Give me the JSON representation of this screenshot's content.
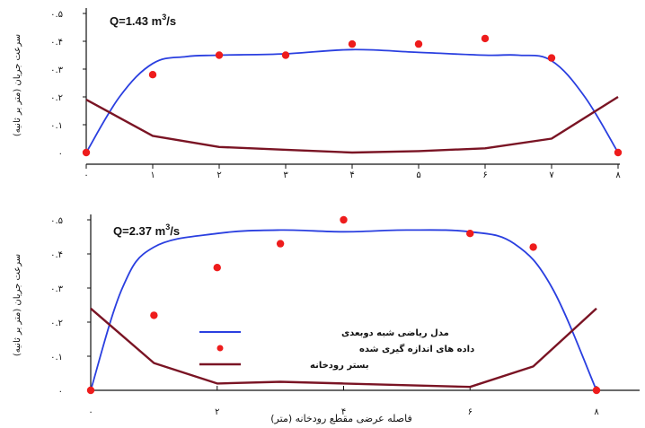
{
  "colors": {
    "model": "#2a3fe0",
    "measured": "#ee1c1c",
    "bed": "#7a1424",
    "axis": "#111111"
  },
  "chart_data": [
    {
      "type": "line",
      "title_prefix": "Q=1.43 m",
      "title_sup": "3",
      "title_suffix": "/s",
      "ylabel": "سرعت جریان (متر بر ثانیه)",
      "xlabel": "",
      "xlim": [
        0,
        8
      ],
      "ylim": [
        0,
        0.5
      ],
      "xticks": [
        0,
        1,
        2,
        3,
        4,
        5,
        6,
        7,
        8
      ],
      "xtick_labels": [
        "۰",
        "۱",
        "۲",
        "۳",
        "۴",
        "۵",
        "۶",
        "۷",
        "۸"
      ],
      "yticks": [
        0,
        0.1,
        0.2,
        0.3,
        0.4,
        0.5
      ],
      "ytick_labels": [
        "۰",
        "۰.۱",
        "۰.۲",
        "۰.۳",
        "۰.۴",
        "۰.۵"
      ],
      "series": [
        {
          "name": "مدل ریاضی شبه دوبعدی",
          "kind": "line",
          "x": [
            0,
            0.5,
            1,
            1.5,
            2,
            3,
            4,
            5,
            6,
            6.5,
            7,
            7.5,
            8
          ],
          "y": [
            0,
            0.2,
            0.32,
            0.345,
            0.35,
            0.355,
            0.37,
            0.36,
            0.35,
            0.35,
            0.33,
            0.2,
            0
          ]
        },
        {
          "name": "داده های اندازه گیری شده",
          "kind": "scatter",
          "x": [
            0,
            1,
            2,
            3,
            4,
            5,
            6,
            7,
            8
          ],
          "y": [
            0,
            0.28,
            0.35,
            0.35,
            0.39,
            0.39,
            0.41,
            0.34,
            0
          ]
        },
        {
          "name": "بستر رودخانه",
          "kind": "line",
          "x": [
            0,
            1,
            2,
            3,
            4,
            5,
            6,
            7,
            8
          ],
          "y": [
            0.19,
            0.06,
            0.02,
            0.01,
            0,
            0.005,
            0.015,
            0.05,
            0.2
          ]
        }
      ]
    },
    {
      "type": "line",
      "title_prefix": "Q=2.37 m",
      "title_sup": "3",
      "title_suffix": "/s",
      "ylabel": "سرعت جریان (متر بر ثانیه)",
      "xlabel": "فاصله عرضی مقطع رودخانه (متر)",
      "xlim": [
        0,
        8
      ],
      "ylim": [
        0,
        0.5
      ],
      "xticks": [
        0,
        2,
        4,
        6,
        8
      ],
      "xtick_labels": [
        "۰",
        "۲",
        "۴",
        "۶",
        "۸"
      ],
      "yticks": [
        0,
        0.1,
        0.2,
        0.3,
        0.4,
        0.5
      ],
      "ytick_labels": [
        "۰",
        "۰.۱",
        "۰.۲",
        "۰.۳",
        "۰.۴",
        "۰.۵"
      ],
      "legend": "center-left",
      "series": [
        {
          "name": "مدل ریاضی شبه دوبعدی",
          "kind": "line",
          "x": [
            0,
            0.5,
            1,
            2,
            3,
            4,
            5,
            6,
            6.7,
            7.3,
            8
          ],
          "y": [
            0,
            0.3,
            0.42,
            0.46,
            0.47,
            0.465,
            0.47,
            0.465,
            0.43,
            0.3,
            0
          ]
        },
        {
          "name": "داده های اندازه گیری شده",
          "kind": "scatter",
          "x": [
            0,
            1,
            2,
            3,
            4,
            6,
            7,
            8
          ],
          "y": [
            0,
            0.22,
            0.36,
            0.43,
            0.5,
            0.46,
            0.42,
            0
          ]
        },
        {
          "name": "بستر رودخانه",
          "kind": "line",
          "x": [
            0,
            1,
            2,
            3,
            4,
            5,
            6,
            7,
            8
          ],
          "y": [
            0.24,
            0.08,
            0.02,
            0.025,
            0.02,
            0.015,
            0.01,
            0.07,
            0.24
          ]
        }
      ]
    }
  ]
}
